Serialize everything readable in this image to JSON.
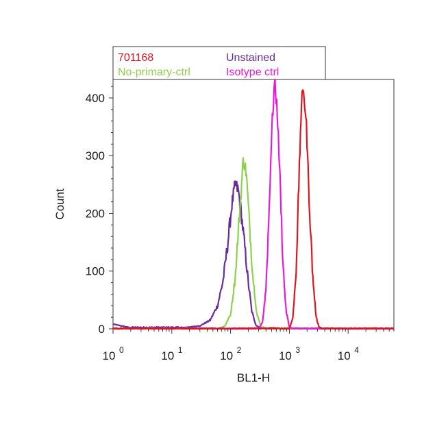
{
  "chart_data": {
    "type": "histogram",
    "xlabel": "BL1-H",
    "ylabel": "Count",
    "x_scale": "log",
    "xlim": [
      1,
      60000
    ],
    "ylim": [
      0,
      430
    ],
    "yticks": [
      0,
      100,
      200,
      300,
      400
    ],
    "xticks": [
      {
        "value": 1,
        "base": "10",
        "exp": "0"
      },
      {
        "value": 10,
        "base": "10",
        "exp": "1"
      },
      {
        "value": 100,
        "base": "10",
        "exp": "2"
      },
      {
        "value": 1000,
        "base": "10",
        "exp": "3"
      },
      {
        "value": 10000,
        "base": "10",
        "exp": "4"
      }
    ],
    "legend_position": "top",
    "series": [
      {
        "name": "Unstained",
        "color": "#6a2a9a",
        "points": [
          [
            1,
            8
          ],
          [
            2,
            2
          ],
          [
            5,
            2
          ],
          [
            15,
            2
          ],
          [
            30,
            5
          ],
          [
            45,
            15
          ],
          [
            60,
            40
          ],
          [
            75,
            85
          ],
          [
            90,
            150
          ],
          [
            105,
            215
          ],
          [
            120,
            250
          ],
          [
            135,
            240
          ],
          [
            150,
            205
          ],
          [
            175,
            140
          ],
          [
            200,
            80
          ],
          [
            230,
            30
          ],
          [
            270,
            6
          ],
          [
            330,
            1
          ],
          [
            1000,
            0
          ],
          [
            60000,
            0
          ]
        ]
      },
      {
        "name": "No-primary-ctrl",
        "color": "#8fd14f",
        "points": [
          [
            1,
            0
          ],
          [
            60,
            0
          ],
          [
            80,
            5
          ],
          [
            100,
            25
          ],
          [
            120,
            90
          ],
          [
            140,
            190
          ],
          [
            165,
            295
          ],
          [
            185,
            270
          ],
          [
            210,
            180
          ],
          [
            240,
            90
          ],
          [
            280,
            25
          ],
          [
            330,
            4
          ],
          [
            400,
            0
          ],
          [
            60000,
            0
          ]
        ]
      },
      {
        "name": "Isotype ctrl",
        "color": "#e81ad8",
        "points": [
          [
            1,
            0
          ],
          [
            300,
            0
          ],
          [
            350,
            12
          ],
          [
            400,
            70
          ],
          [
            450,
            200
          ],
          [
            500,
            340
          ],
          [
            560,
            430
          ],
          [
            620,
            380
          ],
          [
            700,
            250
          ],
          [
            780,
            110
          ],
          [
            880,
            30
          ],
          [
            1000,
            3
          ],
          [
            1100,
            0
          ],
          [
            60000,
            0
          ]
        ]
      },
      {
        "name": "701168",
        "color": "#e0141e",
        "points": [
          [
            1,
            0
          ],
          [
            1000,
            0
          ],
          [
            1150,
            20
          ],
          [
            1300,
            100
          ],
          [
            1450,
            250
          ],
          [
            1600,
            390
          ],
          [
            1750,
            415
          ],
          [
            1950,
            350
          ],
          [
            2200,
            210
          ],
          [
            2500,
            90
          ],
          [
            2850,
            20
          ],
          [
            3200,
            3
          ],
          [
            3600,
            0
          ],
          [
            60000,
            0
          ]
        ]
      }
    ],
    "legend": [
      {
        "label": "701168",
        "color": "#e0141e"
      },
      {
        "label": "Unstained",
        "color": "#6a2a9a"
      },
      {
        "label": "No-primary-ctrl",
        "color": "#8fd14f"
      },
      {
        "label": "Isotype ctrl",
        "color": "#e81ad8"
      }
    ]
  }
}
